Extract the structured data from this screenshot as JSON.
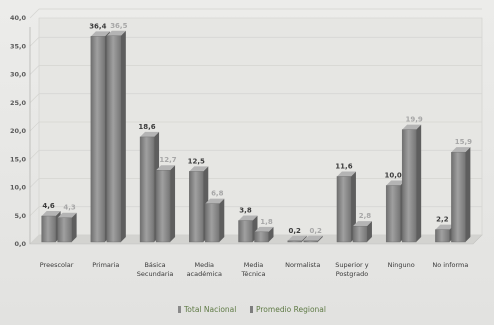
{
  "chart_data": {
    "type": "bar",
    "title": "",
    "xlabel": "",
    "ylabel": "",
    "ylim": [
      0,
      40
    ],
    "yticks": [
      "0,0",
      "5,0",
      "10,0",
      "15,0",
      "20,0",
      "25,0",
      "30,0",
      "35,0",
      "40,0"
    ],
    "grid": true,
    "legend_position": "bottom",
    "categories": [
      [
        "Preescolar"
      ],
      [
        "Primaria"
      ],
      [
        "Básica",
        "Secundaria"
      ],
      [
        "Media",
        "académica"
      ],
      [
        "Media",
        "Técnica"
      ],
      [
        "Normalista"
      ],
      [
        "Superior y",
        "Postgrado"
      ],
      [
        "Ninguno"
      ],
      [
        "No informa"
      ]
    ],
    "series": [
      {
        "name": "Total Nacional",
        "color": "#8a8a8a",
        "values": [
          4.6,
          36.4,
          18.6,
          12.5,
          3.8,
          0.2,
          11.6,
          10.0,
          2.2
        ],
        "labels": [
          "4,6",
          "36,4",
          "18,6",
          "12,5",
          "3,8",
          "0,2",
          "11,6",
          "10,0",
          "2,2"
        ]
      },
      {
        "name": "Promedio Regional",
        "color": "#7d7d7d",
        "values": [
          4.3,
          36.5,
          12.7,
          6.8,
          1.8,
          0.2,
          2.8,
          19.9,
          15.9
        ],
        "labels": [
          "4,3",
          "36,5",
          "12,7",
          "6,8",
          "1,8",
          "0,2",
          "2,8",
          "19,9",
          "15,9"
        ]
      }
    ]
  }
}
